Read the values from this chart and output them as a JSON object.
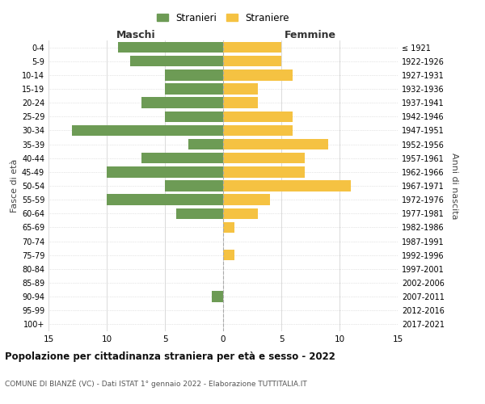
{
  "age_groups": [
    "0-4",
    "5-9",
    "10-14",
    "15-19",
    "20-24",
    "25-29",
    "30-34",
    "35-39",
    "40-44",
    "45-49",
    "50-54",
    "55-59",
    "60-64",
    "65-69",
    "70-74",
    "75-79",
    "80-84",
    "85-89",
    "90-94",
    "95-99",
    "100+"
  ],
  "birth_years": [
    "2017-2021",
    "2012-2016",
    "2007-2011",
    "2002-2006",
    "1997-2001",
    "1992-1996",
    "1987-1991",
    "1982-1986",
    "1977-1981",
    "1972-1976",
    "1967-1971",
    "1962-1966",
    "1957-1961",
    "1952-1956",
    "1947-1951",
    "1942-1946",
    "1937-1941",
    "1932-1936",
    "1927-1931",
    "1922-1926",
    "≤ 1921"
  ],
  "maschi": [
    9,
    8,
    5,
    5,
    7,
    5,
    13,
    3,
    7,
    10,
    5,
    10,
    4,
    0,
    0,
    0,
    0,
    0,
    1,
    0,
    0
  ],
  "femmine": [
    5,
    5,
    6,
    3,
    3,
    6,
    6,
    9,
    7,
    7,
    11,
    4,
    3,
    1,
    0,
    1,
    0,
    0,
    0,
    0,
    0
  ],
  "maschi_color": "#6d9b55",
  "femmine_color": "#f5c242",
  "title": "Popolazione per cittadinanza straniera per età e sesso - 2022",
  "subtitle": "COMUNE DI BIANZÈ (VC) - Dati ISTAT 1° gennaio 2022 - Elaborazione TUTTITALIA.IT",
  "xlabel_left": "Maschi",
  "xlabel_right": "Femmine",
  "ylabel_left": "Fasce di età",
  "ylabel_right": "Anni di nascita",
  "legend_stranieri": "Stranieri",
  "legend_straniere": "Straniere",
  "xlim": 15,
  "background_color": "#ffffff",
  "grid_color": "#cccccc"
}
